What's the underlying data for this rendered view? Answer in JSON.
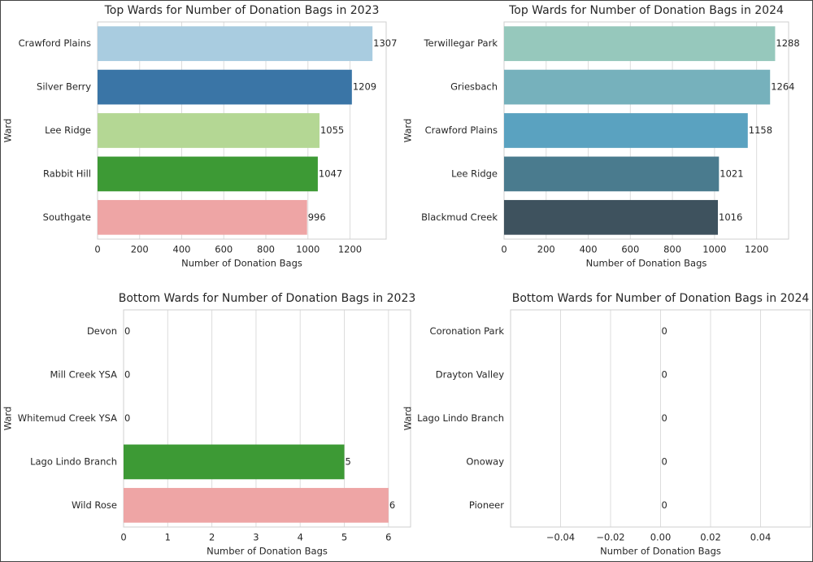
{
  "chart_data": [
    {
      "type": "bar",
      "orientation": "horizontal",
      "title": "Top Wards for Number of Donation Bags in 2023",
      "xlabel": "Number of Donation Bags",
      "ylabel": "Ward",
      "categories": [
        "Crawford Plains",
        "Silver Berry",
        "Lee Ridge",
        "Rabbit Hill",
        "Southgate"
      ],
      "values": [
        1307,
        1209,
        1055,
        1047,
        996
      ],
      "colors": [
        "#a9cce0",
        "#3a75a6",
        "#b4d794",
        "#3d9a35",
        "#eea5a5"
      ],
      "xlim": [
        0,
        1372
      ],
      "xticks": [
        0,
        200,
        400,
        600,
        800,
        1000,
        1200
      ],
      "grid": true
    },
    {
      "type": "bar",
      "orientation": "horizontal",
      "title": "Top Wards for Number of Donation Bags in 2024",
      "xlabel": "Number of Donation Bags",
      "ylabel": "Ward",
      "categories": [
        "Terwillegar Park",
        "Griesbach",
        "Crawford Plains",
        "Lee Ridge",
        "Blackmud Creek"
      ],
      "values": [
        1288,
        1264,
        1158,
        1021,
        1016
      ],
      "colors": [
        "#96c8bc",
        "#76b1bc",
        "#5aa2c0",
        "#4a7b8e",
        "#3e525e"
      ],
      "xlim": [
        0,
        1352
      ],
      "xticks": [
        0,
        200,
        400,
        600,
        800,
        1000,
        1200
      ],
      "grid": true
    },
    {
      "type": "bar",
      "orientation": "horizontal",
      "title": "Bottom Wards for Number of Donation Bags in 2023",
      "xlabel": "Number of Donation Bags",
      "ylabel": "Ward",
      "categories": [
        "Devon",
        "Mill Creek YSA",
        "Whitemud Creek YSA",
        "Lago Lindo Branch",
        "Wild Rose"
      ],
      "values": [
        0,
        0,
        0,
        5,
        6
      ],
      "colors": [
        "#a9cce0",
        "#3a75a6",
        "#b4d794",
        "#3d9a35",
        "#eea5a5"
      ],
      "xlim": [
        0,
        6.5
      ],
      "xticks": [
        0,
        1,
        2,
        3,
        4,
        5,
        6
      ],
      "grid": true
    },
    {
      "type": "bar",
      "orientation": "horizontal",
      "title": "Bottom Wards for Number of Donation Bags in 2024",
      "xlabel": "Number of Donation Bags",
      "ylabel": "Ward",
      "categories": [
        "Coronation Park",
        "Drayton Valley",
        "Lago Lindo Branch",
        "Onoway",
        "Pioneer"
      ],
      "values": [
        0,
        0,
        0,
        0,
        0
      ],
      "colors": [
        "#96c8bc",
        "#76b1bc",
        "#5aa2c0",
        "#4a7b8e",
        "#3e525e"
      ],
      "xlim": [
        -0.06,
        0.06
      ],
      "xticks": [
        {
          "value": -0.04,
          "label": "−0.04"
        },
        {
          "value": -0.02,
          "label": "−0.02"
        },
        {
          "value": 0,
          "label": "0.00"
        },
        0.02,
        0.04
      ],
      "grid": true
    }
  ]
}
